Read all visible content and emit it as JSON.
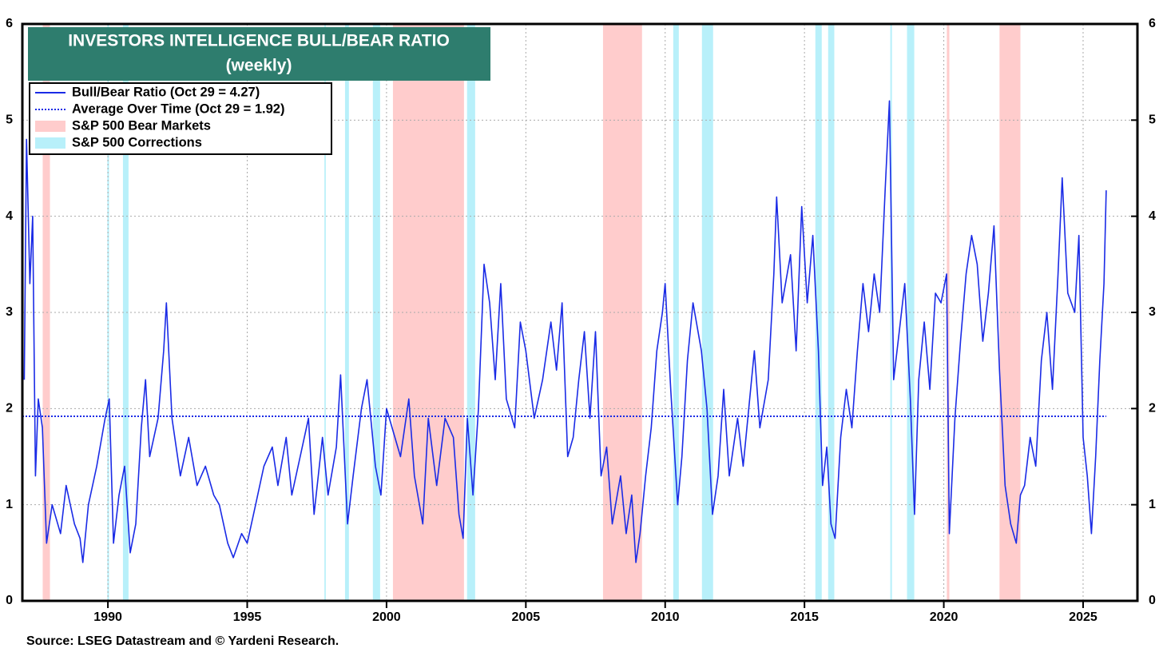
{
  "chart_data": {
    "type": "line",
    "title": "INVESTORS INTELLIGENCE BULL/BEAR RATIO",
    "subtitle": "(weekly)",
    "source": "Source: LSEG Datastream and © Yardeni Research.",
    "xlim": [
      1986.93,
      2026.95
    ],
    "xticks": [
      1990,
      1995,
      2000,
      2005,
      2010,
      2015,
      2020,
      2025
    ],
    "ylim": [
      0,
      6
    ],
    "yticks": [
      0,
      1,
      2,
      3,
      4,
      5,
      6
    ],
    "grid": true,
    "x": [
      1987.0,
      1987.08,
      1987.2,
      1987.3,
      1987.4,
      1987.5,
      1987.65,
      1987.8,
      1988.0,
      1988.3,
      1988.5,
      1988.8,
      1989.0,
      1989.1,
      1989.3,
      1989.6,
      1989.9,
      1990.05,
      1990.2,
      1990.4,
      1990.6,
      1990.8,
      1991.0,
      1991.2,
      1991.35,
      1991.5,
      1991.8,
      1992.0,
      1992.1,
      1992.3,
      1992.6,
      1992.9,
      1993.2,
      1993.5,
      1993.8,
      1994.0,
      1994.3,
      1994.5,
      1994.8,
      1995.0,
      1995.3,
      1995.6,
      1995.9,
      1996.1,
      1996.4,
      1996.6,
      1996.9,
      1997.2,
      1997.4,
      1997.7,
      1997.9,
      1998.2,
      1998.35,
      1998.6,
      1998.8,
      1999.1,
      1999.3,
      1999.6,
      1999.8,
      2000.0,
      2000.2,
      2000.5,
      2000.8,
      2001.0,
      2001.3,
      2001.5,
      2001.8,
      2002.1,
      2002.4,
      2002.6,
      2002.75,
      2002.9,
      2003.1,
      2003.3,
      2003.5,
      2003.7,
      2003.9,
      2004.1,
      2004.3,
      2004.6,
      2004.8,
      2005.0,
      2005.3,
      2005.6,
      2005.9,
      2006.1,
      2006.3,
      2006.5,
      2006.7,
      2006.9,
      2007.1,
      2007.3,
      2007.5,
      2007.7,
      2007.9,
      2008.1,
      2008.4,
      2008.6,
      2008.8,
      2008.95,
      2009.1,
      2009.3,
      2009.5,
      2009.7,
      2009.9,
      2010.0,
      2010.2,
      2010.45,
      2010.6,
      2010.8,
      2011.0,
      2011.3,
      2011.5,
      2011.7,
      2011.9,
      2012.1,
      2012.3,
      2012.6,
      2012.8,
      2013.0,
      2013.2,
      2013.4,
      2013.7,
      2013.9,
      2014.0,
      2014.2,
      2014.5,
      2014.7,
      2014.9,
      2015.1,
      2015.3,
      2015.5,
      2015.65,
      2015.8,
      2015.95,
      2016.1,
      2016.3,
      2016.5,
      2016.7,
      2016.9,
      2017.1,
      2017.3,
      2017.5,
      2017.7,
      2017.9,
      2018.05,
      2018.2,
      2018.4,
      2018.6,
      2018.8,
      2018.95,
      2019.1,
      2019.3,
      2019.5,
      2019.7,
      2019.9,
      2020.1,
      2020.2,
      2020.4,
      2020.6,
      2020.8,
      2021.0,
      2021.2,
      2021.4,
      2021.6,
      2021.8,
      2022.0,
      2022.2,
      2022.4,
      2022.6,
      2022.75,
      2022.9,
      2023.1,
      2023.3,
      2023.5,
      2023.7,
      2023.9,
      2024.1,
      2024.25,
      2024.45,
      2024.7,
      2024.85,
      2025.0,
      2025.15,
      2025.3,
      2025.45,
      2025.6,
      2025.75,
      2025.83
    ],
    "series": [
      {
        "name": "Bull/Bear Ratio (Oct 29 = 4.27)",
        "color": "#1a2be6",
        "values": [
          2.3,
          4.8,
          3.3,
          4.0,
          1.3,
          2.1,
          1.8,
          0.6,
          1.0,
          0.7,
          1.2,
          0.8,
          0.65,
          0.4,
          1.0,
          1.4,
          1.9,
          2.1,
          0.6,
          1.1,
          1.4,
          0.5,
          0.8,
          1.8,
          2.3,
          1.5,
          1.9,
          2.6,
          3.1,
          1.9,
          1.3,
          1.7,
          1.2,
          1.4,
          1.1,
          1.0,
          0.6,
          0.45,
          0.7,
          0.6,
          1.0,
          1.4,
          1.6,
          1.2,
          1.7,
          1.1,
          1.5,
          1.9,
          0.9,
          1.7,
          1.1,
          1.6,
          2.35,
          0.8,
          1.3,
          2.0,
          2.3,
          1.4,
          1.1,
          2.0,
          1.8,
          1.5,
          2.1,
          1.3,
          0.8,
          1.9,
          1.2,
          1.9,
          1.7,
          0.9,
          0.65,
          1.9,
          1.1,
          2.0,
          3.5,
          3.1,
          2.3,
          3.3,
          2.1,
          1.8,
          2.9,
          2.6,
          1.9,
          2.3,
          2.9,
          2.4,
          3.1,
          1.5,
          1.7,
          2.3,
          2.8,
          1.9,
          2.8,
          1.3,
          1.6,
          0.8,
          1.3,
          0.7,
          1.1,
          0.4,
          0.7,
          1.3,
          1.8,
          2.6,
          3.0,
          3.3,
          2.2,
          1.0,
          1.5,
          2.5,
          3.1,
          2.6,
          2.0,
          0.9,
          1.3,
          2.2,
          1.3,
          1.9,
          1.4,
          2.0,
          2.6,
          1.8,
          2.3,
          3.4,
          4.2,
          3.1,
          3.6,
          2.6,
          4.1,
          3.1,
          3.8,
          2.6,
          1.2,
          1.6,
          0.8,
          0.65,
          1.7,
          2.2,
          1.8,
          2.6,
          3.3,
          2.8,
          3.4,
          3.0,
          4.3,
          5.2,
          2.3,
          2.8,
          3.3,
          2.1,
          0.9,
          2.3,
          2.9,
          2.2,
          3.2,
          3.1,
          3.4,
          0.7,
          1.9,
          2.7,
          3.4,
          3.8,
          3.5,
          2.7,
          3.2,
          3.9,
          2.4,
          1.2,
          0.8,
          0.6,
          1.1,
          1.2,
          1.7,
          1.4,
          2.5,
          3.0,
          2.2,
          3.4,
          4.4,
          3.2,
          3.0,
          3.8,
          1.7,
          1.3,
          0.7,
          1.5,
          2.5,
          3.3,
          4.27
        ]
      }
    ],
    "average": {
      "name": "Average Over Time (Oct 29 = 1.92)",
      "value": 1.92,
      "color": "#1a2be6"
    },
    "shaded": [
      {
        "name": "S&P 500 Bear Markets",
        "color": "#ffcccc",
        "spans": [
          [
            1987.66,
            1987.92
          ],
          [
            2000.23,
            2002.78
          ],
          [
            2007.77,
            2009.17
          ],
          [
            2020.11,
            2020.2
          ],
          [
            2022.0,
            2022.75
          ]
        ]
      },
      {
        "name": "S&P 500 Corrections",
        "color": "#b8f0fa",
        "spans": [
          [
            1989.98,
            1990.04
          ],
          [
            1990.54,
            1990.74
          ],
          [
            1997.77,
            1997.82
          ],
          [
            1998.51,
            1998.65
          ],
          [
            1999.51,
            1999.77
          ],
          [
            2002.89,
            2003.18
          ],
          [
            2010.29,
            2010.49
          ],
          [
            2011.32,
            2011.72
          ],
          [
            2015.39,
            2015.62
          ],
          [
            2015.85,
            2016.07
          ],
          [
            2018.08,
            2018.14
          ],
          [
            2018.68,
            2018.94
          ]
        ]
      }
    ]
  }
}
